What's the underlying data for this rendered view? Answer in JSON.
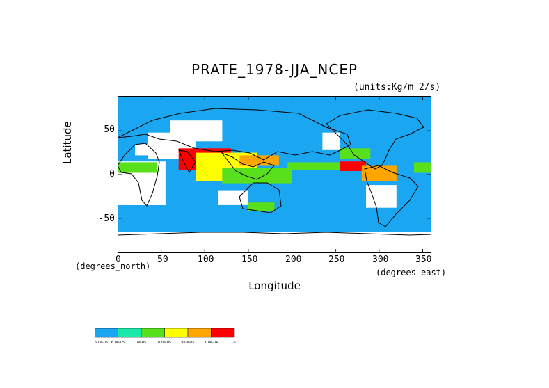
{
  "header": {
    "title": "PRATE_1978-JJA_NCEP",
    "units": "(units:Kg/m¯2/s)"
  },
  "axes": {
    "ylabel": "Latitude",
    "xlabel": "Longitude",
    "lat_ticks": [
      "50",
      "0",
      "-50"
    ],
    "lon_ticks": [
      "0",
      "50",
      "100",
      "150",
      "200",
      "250",
      "300",
      "350"
    ],
    "ylabel_units": "(degrees_north)",
    "xlabel_units": "(degrees_east)"
  },
  "colorbar": {
    "colors": [
      "#1aa6f0",
      "#19e8a8",
      "#58e01c",
      "#ffff00",
      "#ffa500",
      "#ff0000"
    ],
    "labels": [
      "5.0e-05",
      "6.0e-05",
      "7e-05",
      "8.0e-05",
      "9.0e-05",
      "1.0e-04",
      "∞"
    ]
  },
  "colors": {
    "ocean_base": "#1aa6f0",
    "missing": "#ffffff",
    "coast": "#000000"
  },
  "chart_data": {
    "type": "heatmap",
    "title": "PRATE_1978-JJA_NCEP",
    "xlabel": "Longitude",
    "ylabel": "Latitude",
    "xlim": [
      0,
      360
    ],
    "ylim": [
      -90,
      90
    ],
    "units": "Kg/m^-2/s",
    "levels": [
      5e-05,
      6e-05,
      7e-05,
      8e-05,
      9e-05,
      0.0001
    ],
    "regions": [
      {
        "lon": [
          0,
          360
        ],
        "lat": [
          -90,
          90
        ],
        "level": 0
      },
      {
        "lon": [
          0,
          360
        ],
        "lat": [
          -90,
          -66
        ],
        "level": -1
      },
      {
        "lon": [
          -10,
          55
        ],
        "lat": [
          -35,
          15
        ],
        "level": -1
      },
      {
        "lon": [
          20,
          45
        ],
        "lat": [
          22,
          35
        ],
        "level": -1
      },
      {
        "lon": [
          35,
          90
        ],
        "lat": [
          18,
          48
        ],
        "level": -1
      },
      {
        "lon": [
          60,
          120
        ],
        "lat": [
          38,
          62
        ],
        "level": -1
      },
      {
        "lon": [
          115,
          150
        ],
        "lat": [
          -35,
          -18
        ],
        "level": -1
      },
      {
        "lon": [
          235,
          255
        ],
        "lat": [
          28,
          48
        ],
        "level": -1
      },
      {
        "lon": [
          285,
          320
        ],
        "lat": [
          -38,
          -12
        ],
        "level": -1
      },
      {
        "lon": [
          0,
          45
        ],
        "lat": [
          2,
          14
        ],
        "level": 2
      },
      {
        "lon": [
          70,
          130
        ],
        "lat": [
          5,
          30
        ],
        "level": 5
      },
      {
        "lon": [
          90,
          160
        ],
        "lat": [
          -8,
          25
        ],
        "level": 3
      },
      {
        "lon": [
          120,
          200
        ],
        "lat": [
          -10,
          8
        ],
        "level": 2
      },
      {
        "lon": [
          140,
          185
        ],
        "lat": [
          10,
          22
        ],
        "level": 4
      },
      {
        "lon": [
          195,
          285
        ],
        "lat": [
          5,
          14
        ],
        "level": 2
      },
      {
        "lon": [
          255,
          285
        ],
        "lat": [
          4,
          15
        ],
        "level": 5
      },
      {
        "lon": [
          280,
          320
        ],
        "lat": [
          -8,
          10
        ],
        "level": 4
      },
      {
        "lon": [
          255,
          290
        ],
        "lat": [
          18,
          30
        ],
        "level": 2
      },
      {
        "lon": [
          150,
          180
        ],
        "lat": [
          -42,
          -32
        ],
        "level": 2
      },
      {
        "lon": [
          340,
          360
        ],
        "lat": [
          2,
          14
        ],
        "level": 2
      }
    ]
  }
}
